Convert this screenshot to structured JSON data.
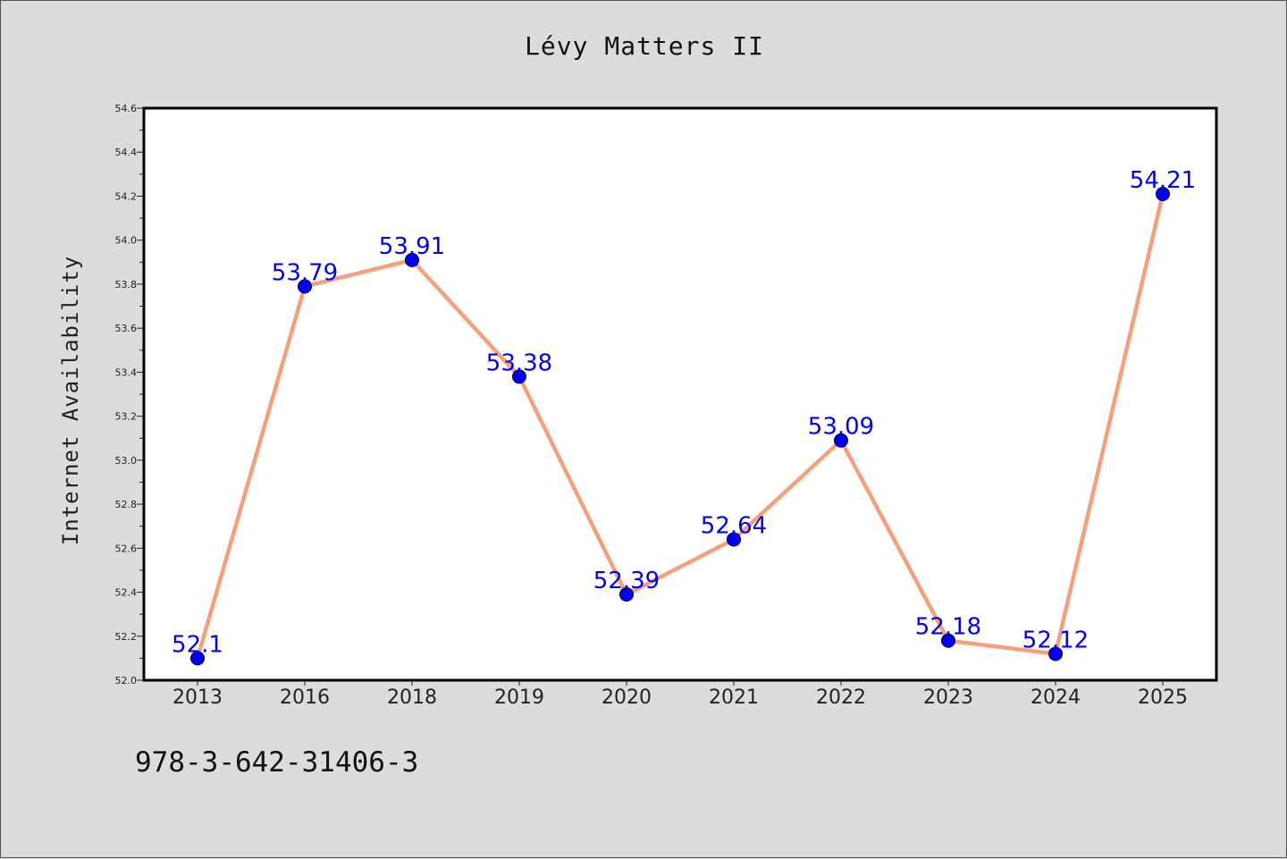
{
  "title": "Lévy Matters II",
  "footer_text": "978-3-642-31406-3",
  "colors": {
    "background": "#dcdcdc",
    "plot_background": "#ffffff",
    "line": "#f4a07c",
    "marker": "#0000ee",
    "data_label": "#0000ee"
  },
  "chart_data": {
    "type": "line",
    "title": "Lévy Matters II",
    "xlabel": "",
    "ylabel": "Internet Availability",
    "categories": [
      "2013",
      "2016",
      "2018",
      "2019",
      "2020",
      "2021",
      "2022",
      "2023",
      "2024",
      "2025"
    ],
    "series": [
      {
        "values": [
          52.1,
          53.79,
          53.91,
          53.38,
          52.39,
          52.64,
          53.09,
          52.18,
          52.12,
          54.21
        ],
        "data_labels": [
          "52.1",
          "53.79",
          "53.91",
          "53.38",
          "52.39",
          "52.64",
          "53.09",
          "52.18",
          "52.12",
          "54.21"
        ]
      }
    ],
    "ylim": [
      52.0,
      54.6
    ],
    "y_ticks": [
      "52.0",
      "52.2",
      "52.4",
      "52.6",
      "52.8",
      "53.0",
      "53.2",
      "53.4",
      "53.6",
      "53.8",
      "54.0",
      "54.2",
      "54.4",
      "54.6"
    ],
    "y_minor_step": 0.1,
    "grid": false,
    "legend": "none",
    "marker": "circle"
  }
}
